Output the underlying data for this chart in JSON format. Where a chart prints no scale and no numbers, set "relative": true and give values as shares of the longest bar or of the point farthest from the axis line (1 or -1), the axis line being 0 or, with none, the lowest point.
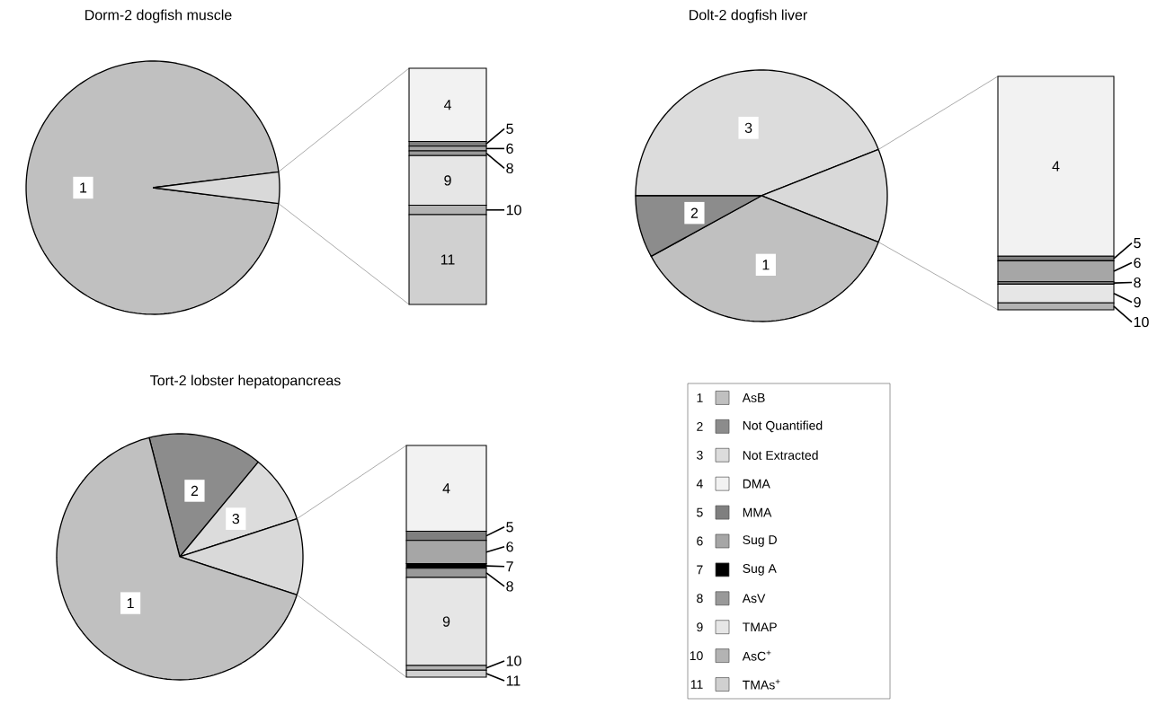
{
  "chart_data": [
    {
      "type": "pie",
      "title": "Dorm-2 dogfish muscle",
      "categories": [
        "1",
        null
      ],
      "values": [
        96,
        4
      ],
      "colors": [
        "#c0c0c0",
        "#d9d9d9"
      ]
    },
    {
      "type": "bar",
      "stacked": true,
      "relative": true,
      "legend": "right",
      "categories": [
        null
      ],
      "series": [
        {
          "name": "11",
          "color": "#d0d0d0",
          "values": [
            0.38
          ]
        },
        {
          "name": "10",
          "color": "#b3b3b3",
          "values": [
            0.04
          ]
        },
        {
          "name": "9",
          "color": "#e6e6e6",
          "values": [
            0.21
          ]
        },
        {
          "name": "8",
          "color": "#999999",
          "values": [
            0.02
          ]
        },
        {
          "name": "6",
          "color": "#a6a6a6",
          "values": [
            0.02
          ]
        },
        {
          "name": "5",
          "color": "#7f7f7f",
          "values": [
            0.02
          ]
        },
        {
          "name": "4",
          "color": "#f2f2f2",
          "values": [
            0.31
          ]
        }
      ]
    },
    {
      "type": "pie",
      "title": "Dolt-2 dogfish liver",
      "categories": [
        "3",
        null,
        "1",
        "2"
      ],
      "values": [
        44,
        12,
        36,
        8
      ],
      "colors": [
        "#dcdcdc",
        "#d9d9d9",
        "#c0c0c0",
        "#8c8c8c"
      ]
    },
    {
      "type": "bar",
      "stacked": true,
      "relative": true,
      "legend": "right",
      "categories": [
        null
      ],
      "series": [
        {
          "name": "10",
          "color": "#b3b3b3",
          "values": [
            0.03
          ]
        },
        {
          "name": "9",
          "color": "#e6e6e6",
          "values": [
            0.08
          ]
        },
        {
          "name": "8",
          "color": "#999999",
          "values": [
            0.01
          ]
        },
        {
          "name": "6",
          "color": "#a6a6a6",
          "values": [
            0.09
          ]
        },
        {
          "name": "5",
          "color": "#7f7f7f",
          "values": [
            0.02
          ]
        },
        {
          "name": "4",
          "color": "#f2f2f2",
          "values": [
            0.77
          ]
        }
      ]
    },
    {
      "type": "pie",
      "title": "Tort-2 lobster hepatopancreas",
      "categories": [
        "2",
        "3",
        null,
        "1"
      ],
      "values": [
        15,
        9,
        10,
        66
      ],
      "colors": [
        "#8c8c8c",
        "#dcdcdc",
        "#d9d9d9",
        "#c0c0c0"
      ]
    },
    {
      "type": "bar",
      "stacked": true,
      "relative": true,
      "legend": "right",
      "categories": [
        null
      ],
      "series": [
        {
          "name": "11",
          "color": "#d0d0d0",
          "values": [
            0.03
          ]
        },
        {
          "name": "10",
          "color": "#b3b3b3",
          "values": [
            0.02
          ]
        },
        {
          "name": "9",
          "color": "#e6e6e6",
          "values": [
            0.38
          ]
        },
        {
          "name": "8",
          "color": "#999999",
          "values": [
            0.04
          ]
        },
        {
          "name": "7",
          "color": "#000000",
          "values": [
            0.02
          ]
        },
        {
          "name": "6",
          "color": "#a6a6a6",
          "values": [
            0.1
          ]
        },
        {
          "name": "5",
          "color": "#7f7f7f",
          "values": [
            0.04
          ]
        },
        {
          "name": "4",
          "color": "#f2f2f2",
          "values": [
            0.37
          ]
        }
      ]
    },
    {
      "type": "other",
      "categories": [
        "AsB",
        "Not Quantified",
        "Not Extracted",
        "DMA",
        "MMA",
        "Sug D",
        "Sug A",
        "AsV",
        "TMAP",
        "AsC$^{+}$",
        "TMAs$^{+}$"
      ],
      "values": [
        1,
        2,
        3,
        4,
        5,
        6,
        7,
        8,
        9,
        10,
        11
      ],
      "data_labels": true,
      "colors": [
        "#c0c0c0",
        "#8c8c8c",
        "#dcdcdc",
        "#f2f2f2",
        "#7f7f7f",
        "#a6a6a6",
        "#000000",
        "#999999",
        "#e6e6e6",
        "#b3b3b3",
        "#d0d0d0"
      ]
    }
  ]
}
